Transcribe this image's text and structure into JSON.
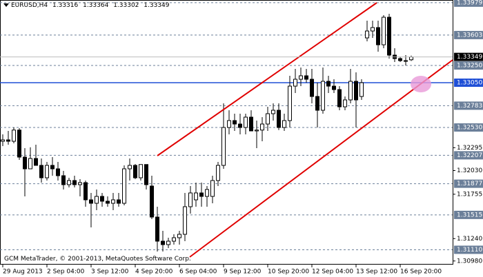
{
  "chart_data": {
    "type": "candlestick",
    "title": "EURUSD,H4",
    "last_ohlc": [
      1.33316,
      1.33364,
      1.33302,
      1.33349
    ],
    "footer": "GCM MetaTrader, © 2001-2013, MetaQuotes Software Corp.",
    "categories": [
      "29 Aug 2013",
      null,
      null,
      null,
      null,
      null,
      null,
      null,
      "2 Sep 04:00",
      null,
      null,
      null,
      null,
      null,
      null,
      null,
      "3 Sep 12:00",
      null,
      null,
      null,
      null,
      null,
      null,
      null,
      "4 Sep 20:00",
      null,
      null,
      null,
      null,
      null,
      null,
      null,
      "6 Sep 04:00",
      null,
      null,
      null,
      null,
      null,
      null,
      null,
      "9 Sep 12:00",
      null,
      null,
      null,
      null,
      null,
      null,
      null,
      "10 Sep 20:00",
      null,
      null,
      null,
      null,
      null,
      null,
      null,
      "12 Sep 04:00",
      null,
      null,
      null,
      null,
      null,
      null,
      null,
      "13 Sep 12:00",
      null,
      null,
      null,
      null,
      null,
      null,
      null,
      "16 Sep 20:00",
      null,
      null
    ],
    "open": [
      1.3237,
      1.32386,
      1.3237,
      1.325,
      1.32186,
      1.3205,
      1.3217,
      1.3209,
      1.31946,
      1.3209,
      1.3205,
      1.3197,
      1.31866,
      1.31914,
      1.31866,
      1.3189,
      1.3169,
      1.3165,
      1.3173,
      1.31674,
      1.3165,
      1.3169,
      1.3165,
      1.3205,
      1.3209,
      1.31946,
      1.321,
      1.3185,
      1.3149,
      1.3121,
      1.3117,
      1.3121,
      1.3125,
      1.3129,
      1.3161,
      1.3169,
      1.3177,
      1.3173,
      1.3173,
      1.31914,
      1.3209,
      1.3253,
      1.3261,
      1.3257,
      1.3253,
      1.3265,
      1.3249,
      1.325,
      1.3257,
      1.3269,
      1.3273,
      1.3253,
      1.3261,
      1.3301,
      1.3309,
      1.3313,
      1.3309,
      1.3289,
      1.3273,
      1.33066,
      1.3301,
      1.3297,
      1.3277,
      1.3285,
      1.33066,
      1.3289,
      1.3357,
      1.3365,
      1.3369,
      1.3349,
      1.3381,
      1.3337,
      1.3333,
      1.33306,
      1.33316
    ],
    "high": [
      1.3245,
      1.3249,
      1.3253,
      1.32522,
      1.3229,
      1.323,
      1.3233,
      1.3217,
      1.3213,
      1.32186,
      1.3213,
      1.32026,
      1.31946,
      1.3197,
      1.3193,
      1.31914,
      1.3177,
      1.3181,
      1.3177,
      1.3173,
      1.3177,
      1.3177,
      1.3209,
      1.3217,
      1.32106,
      1.3205,
      1.3205,
      1.3197,
      1.3161,
      1.3133,
      1.3125,
      1.3129,
      1.3133,
      1.3177,
      1.3185,
      1.3189,
      1.3189,
      1.3185,
      1.3197,
      1.3213,
      1.3281,
      1.3273,
      1.3269,
      1.3269,
      1.3269,
      1.3273,
      1.3261,
      1.3265,
      1.3277,
      1.3281,
      1.3281,
      1.3269,
      1.3313,
      1.3321,
      1.33226,
      1.3321,
      1.3321,
      1.3305,
      1.33226,
      1.3313,
      1.3309,
      1.3301,
      1.3289,
      1.3321,
      1.3317,
      1.3309,
      1.3377,
      1.3377,
      1.3377,
      1.33834,
      1.3385,
      1.3345,
      1.33354,
      1.3337,
      1.33364
    ],
    "low": [
      1.32314,
      1.3233,
      1.32346,
      1.32154,
      1.3173,
      1.321,
      1.321,
      1.3189,
      1.31914,
      1.3197,
      1.31914,
      1.3181,
      1.31834,
      1.31834,
      1.3173,
      1.3161,
      1.3137,
      1.3157,
      1.3161,
      1.3161,
      1.3157,
      1.3161,
      1.31626,
      1.31914,
      1.3193,
      1.31914,
      1.3181,
      1.31466,
      1.3109,
      1.3109,
      1.3113,
      1.3117,
      1.3117,
      1.3121,
      1.3153,
      1.3161,
      1.3161,
      1.3161,
      1.3165,
      1.3185,
      1.3205,
      1.3245,
      1.3249,
      1.3245,
      1.3245,
      1.325,
      1.3229,
      1.3237,
      1.3249,
      1.3261,
      1.325,
      1.3249,
      1.3253,
      1.3293,
      1.3301,
      1.3305,
      1.3281,
      1.3253,
      1.3269,
      1.3293,
      1.3293,
      1.3273,
      1.3273,
      1.3281,
      1.3253,
      1.3285,
      1.3353,
      1.3357,
      1.3341,
      1.3345,
      1.3333,
      1.3329,
      1.3329,
      1.3325,
      1.33302
    ],
    "close": [
      1.32386,
      1.3237,
      1.325,
      1.32186,
      1.3205,
      1.3217,
      1.3209,
      1.31946,
      1.3209,
      1.3205,
      1.3197,
      1.31866,
      1.31914,
      1.31866,
      1.3189,
      1.3169,
      1.3165,
      1.3173,
      1.31674,
      1.3165,
      1.3169,
      1.3165,
      1.3205,
      1.3209,
      1.31946,
      1.321,
      1.31866,
      1.3149,
      1.3121,
      1.3117,
      1.3121,
      1.3125,
      1.3129,
      1.3161,
      1.3177,
      1.3177,
      1.3173,
      1.3181,
      1.31914,
      1.3209,
      1.3253,
      1.3261,
      1.3257,
      1.3253,
      1.3265,
      1.3249,
      1.325,
      1.3257,
      1.3269,
      1.3273,
      1.3253,
      1.3261,
      1.3301,
      1.3309,
      1.3313,
      1.3309,
      1.3289,
      1.3273,
      1.33066,
      1.3301,
      1.3297,
      1.3277,
      1.3285,
      1.33066,
      1.3285,
      1.3305,
      1.3365,
      1.3369,
      1.3349,
      1.3381,
      1.3337,
      1.3333,
      1.33306,
      1.33306,
      {
        "value": 1.33349,
        "label": "1.33349"
      }
    ],
    "ylim": [
      1.30938,
      1.3401
    ],
    "yticks": [
      1.32295,
      {
        "value": 1.3203,
        "label": "1.32030"
      },
      1.31755,
      {
        "value": 1.3124,
        "label": "1.31240"
      },
      {
        "value": 1.3098,
        "label": "1.30980"
      }
    ],
    "levels": [
      1.33979,
      1.33603,
      {
        "value": 1.3325,
        "label": "1.33250"
      },
      1.32783,
      {
        "value": 1.3253,
        "label": "1.32530"
      },
      1.32207,
      1.31877,
      1.31515,
      {
        "value": 1.3111,
        "label": "1.31110"
      }
    ],
    "hline": {
      "value": 1.3305,
      "label": "1.33050"
    },
    "colors": {
      "bull": "#ffffff",
      "bear": "#000000",
      "level": "#6b7f99",
      "hline": "#1f4fd6"
    }
  }
}
